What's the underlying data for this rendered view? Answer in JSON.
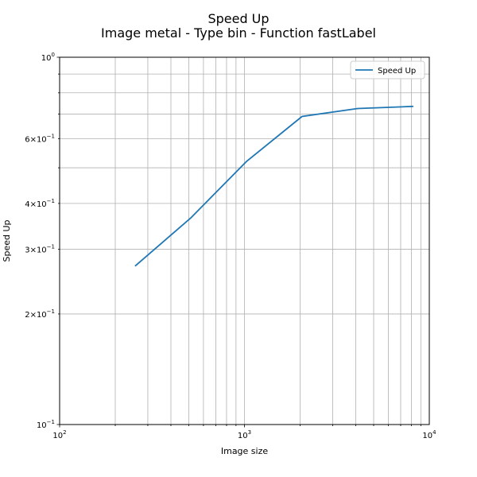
{
  "chart_data": {
    "type": "line",
    "title": "Speed Up",
    "subtitle": "Image metal - Type bin - Function fastLabel",
    "xlabel": "Image size",
    "ylabel": "Speed Up",
    "xscale": "log",
    "yscale": "log",
    "xlim": [
      100,
      10000
    ],
    "ylim": [
      0.1,
      1.0
    ],
    "grid": true,
    "legend_position": "top-right",
    "x_tick_labels": [
      {
        "value": 100,
        "base": "10",
        "exp": "2"
      },
      {
        "value": 1000,
        "base": "10",
        "exp": "3"
      },
      {
        "value": 10000,
        "base": "10",
        "exp": "4"
      }
    ],
    "y_tick_labels": [
      {
        "value": 0.1,
        "mant": "",
        "base": "10",
        "exp": "−1"
      },
      {
        "value": 0.2,
        "mant": "2×",
        "base": "10",
        "exp": "−1"
      },
      {
        "value": 0.3,
        "mant": "3×",
        "base": "10",
        "exp": "−1"
      },
      {
        "value": 0.4,
        "mant": "4×",
        "base": "10",
        "exp": "−1"
      },
      {
        "value": 0.6,
        "mant": "6×",
        "base": "10",
        "exp": "−1"
      },
      {
        "value": 1.0,
        "mant": "",
        "base": "10",
        "exp": "0"
      }
    ],
    "series": [
      {
        "name": "Speed Up",
        "color": "#1f77b4",
        "x": [
          256,
          512,
          1024,
          2048,
          4096,
          8192
        ],
        "y": [
          0.27,
          0.365,
          0.52,
          0.69,
          0.725,
          0.735
        ]
      }
    ]
  }
}
